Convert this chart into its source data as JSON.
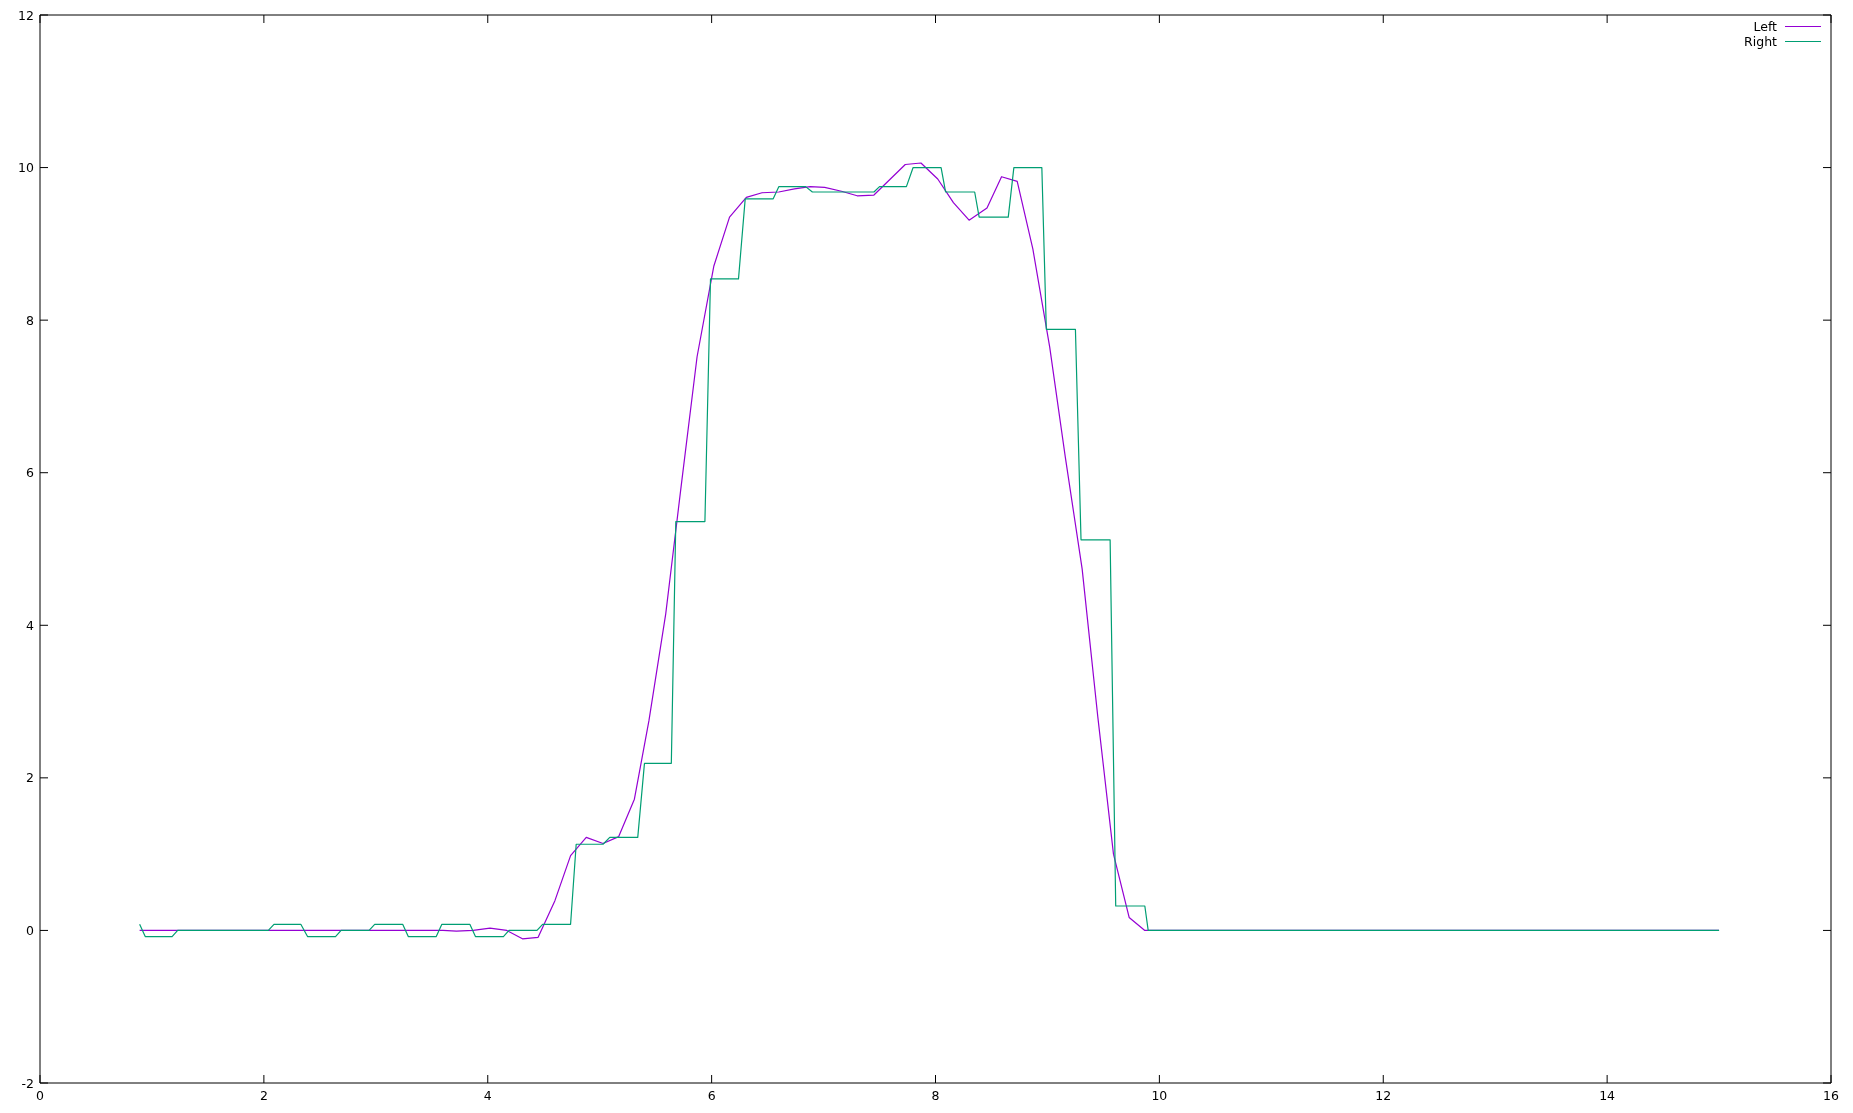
{
  "chart_data": {
    "type": "line",
    "xlim": [
      0,
      16
    ],
    "xticks": [
      0,
      2,
      4,
      6,
      8,
      10,
      12,
      14,
      16
    ],
    "ylim": [
      -2,
      12
    ],
    "yticks": [
      -2,
      0,
      2,
      4,
      6,
      8,
      10,
      12
    ],
    "legend": "top right",
    "series": [
      {
        "name": "Left",
        "color": "#9400d3",
        "x": [
          0.89,
          3.6,
          3.72,
          3.87,
          4.02,
          4.17,
          4.31,
          4.45,
          4.6,
          4.74,
          4.88,
          5.03,
          5.17,
          5.31,
          5.44,
          5.59,
          5.73,
          5.87,
          6.02,
          6.16,
          6.31,
          6.45,
          6.6,
          6.74,
          6.88,
          7.01,
          7.16,
          7.3,
          7.45,
          7.59,
          7.73,
          7.87,
          8.02,
          8.16,
          8.3,
          8.46,
          8.59,
          8.73,
          8.87,
          9.02,
          9.16,
          9.31,
          9.45,
          9.59,
          9.73,
          9.87,
          15
        ],
        "values": [
          0,
          0,
          -0.01,
          0,
          0.03,
          0,
          -0.11,
          -0.09,
          0.39,
          0.98,
          1.22,
          1.14,
          1.23,
          1.72,
          2.75,
          4.15,
          5.85,
          7.52,
          8.71,
          9.35,
          9.61,
          9.67,
          9.68,
          9.72,
          9.75,
          9.74,
          9.69,
          9.63,
          9.64,
          9.84,
          10.04,
          10.06,
          9.85,
          9.54,
          9.31,
          9.47,
          9.88,
          9.82,
          8.93,
          7.65,
          6.2,
          4.74,
          2.8,
          1.0,
          0.17,
          0,
          0
        ]
      },
      {
        "name": "Right",
        "color": "#009e73",
        "x": [
          0.89,
          0.94,
          1.18,
          1.23,
          2.04,
          2.09,
          2.33,
          2.39,
          2.64,
          2.69,
          2.94,
          2.99,
          3.24,
          3.29,
          3.54,
          3.59,
          3.84,
          3.89,
          4.14,
          4.19,
          4.44,
          4.49,
          4.74,
          4.79,
          5.03,
          5.09,
          5.34,
          5.4,
          5.64,
          5.68,
          5.94,
          5.99,
          6.24,
          6.3,
          6.55,
          6.6,
          6.84,
          6.9,
          7.45,
          7.5,
          7.74,
          7.8,
          8.05,
          8.09,
          8.35,
          8.39,
          8.65,
          8.7,
          8.95,
          8.99,
          9.25,
          9.3,
          9.56,
          9.61,
          9.87,
          9.9,
          15
        ],
        "values": [
          0.08,
          -0.08,
          -0.08,
          0,
          0,
          0.08,
          0.08,
          -0.08,
          -0.08,
          0,
          0,
          0.08,
          0.08,
          -0.08,
          -0.08,
          0.08,
          0.08,
          -0.08,
          -0.08,
          0,
          0,
          0.08,
          0.08,
          1.13,
          1.13,
          1.22,
          1.22,
          2.19,
          2.19,
          5.36,
          5.36,
          8.54,
          8.54,
          9.59,
          9.59,
          9.75,
          9.75,
          9.68,
          9.68,
          9.75,
          9.75,
          10,
          10,
          9.68,
          9.68,
          9.35,
          9.35,
          10,
          10,
          7.88,
          7.88,
          5.12,
          5.12,
          0.32,
          0.32,
          0,
          0
        ]
      }
    ]
  }
}
